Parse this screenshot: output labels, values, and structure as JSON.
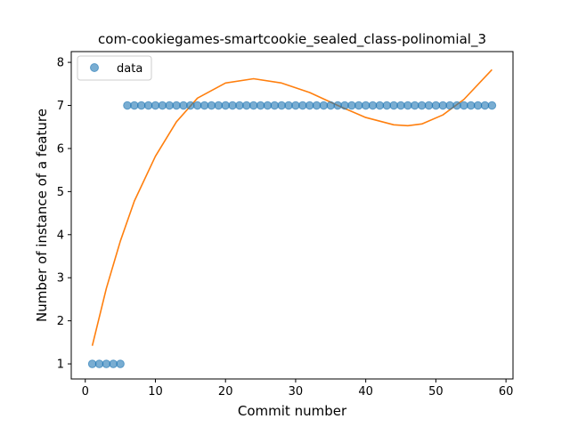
{
  "chart_data": {
    "type": "scatter",
    "title": "com-cookiegames-smartcookie_sealed_class-polinomial_3",
    "xlabel": "Commit number",
    "ylabel": "Number of instance of a feature",
    "xlim": [
      -2,
      61
    ],
    "ylim": [
      0.65,
      8.25
    ],
    "x_ticks": [
      0,
      10,
      20,
      30,
      40,
      50,
      60
    ],
    "y_ticks": [
      1,
      2,
      3,
      4,
      5,
      6,
      7,
      8
    ],
    "grid": false,
    "legend": {
      "position": "top-left",
      "entries": [
        "data"
      ]
    },
    "colors": {
      "data": "#1f77b4",
      "fit": "#ff7f0e"
    },
    "series": [
      {
        "name": "data",
        "kind": "scatter",
        "x": [
          1,
          2,
          3,
          4,
          5,
          6,
          7,
          8,
          9,
          10,
          11,
          12,
          13,
          14,
          15,
          16,
          17,
          18,
          19,
          20,
          21,
          22,
          23,
          24,
          25,
          26,
          27,
          28,
          29,
          30,
          31,
          32,
          33,
          34,
          35,
          36,
          37,
          38,
          39,
          40,
          41,
          42,
          43,
          44,
          45,
          46,
          47,
          48,
          49,
          50,
          51,
          52,
          53,
          54,
          55,
          56,
          57,
          58
        ],
        "y": [
          1,
          1,
          1,
          1,
          1,
          7,
          7,
          7,
          7,
          7,
          7,
          7,
          7,
          7,
          7,
          7,
          7,
          7,
          7,
          7,
          7,
          7,
          7,
          7,
          7,
          7,
          7,
          7,
          7,
          7,
          7,
          7,
          7,
          7,
          7,
          7,
          7,
          7,
          7,
          7,
          7,
          7,
          7,
          7,
          7,
          7,
          7,
          7,
          7,
          7,
          7,
          7,
          7,
          7,
          7,
          7,
          7,
          7
        ]
      },
      {
        "kind": "line",
        "x": [
          1,
          3,
          5,
          7,
          10,
          13,
          16,
          20,
          24,
          28,
          32,
          36,
          40,
          44,
          46,
          48,
          51,
          54,
          58
        ],
        "y": [
          1.42,
          2.75,
          3.85,
          4.78,
          5.82,
          6.62,
          7.17,
          7.52,
          7.62,
          7.52,
          7.3,
          7.0,
          6.72,
          6.55,
          6.53,
          6.57,
          6.78,
          7.14,
          7.83
        ]
      }
    ]
  }
}
